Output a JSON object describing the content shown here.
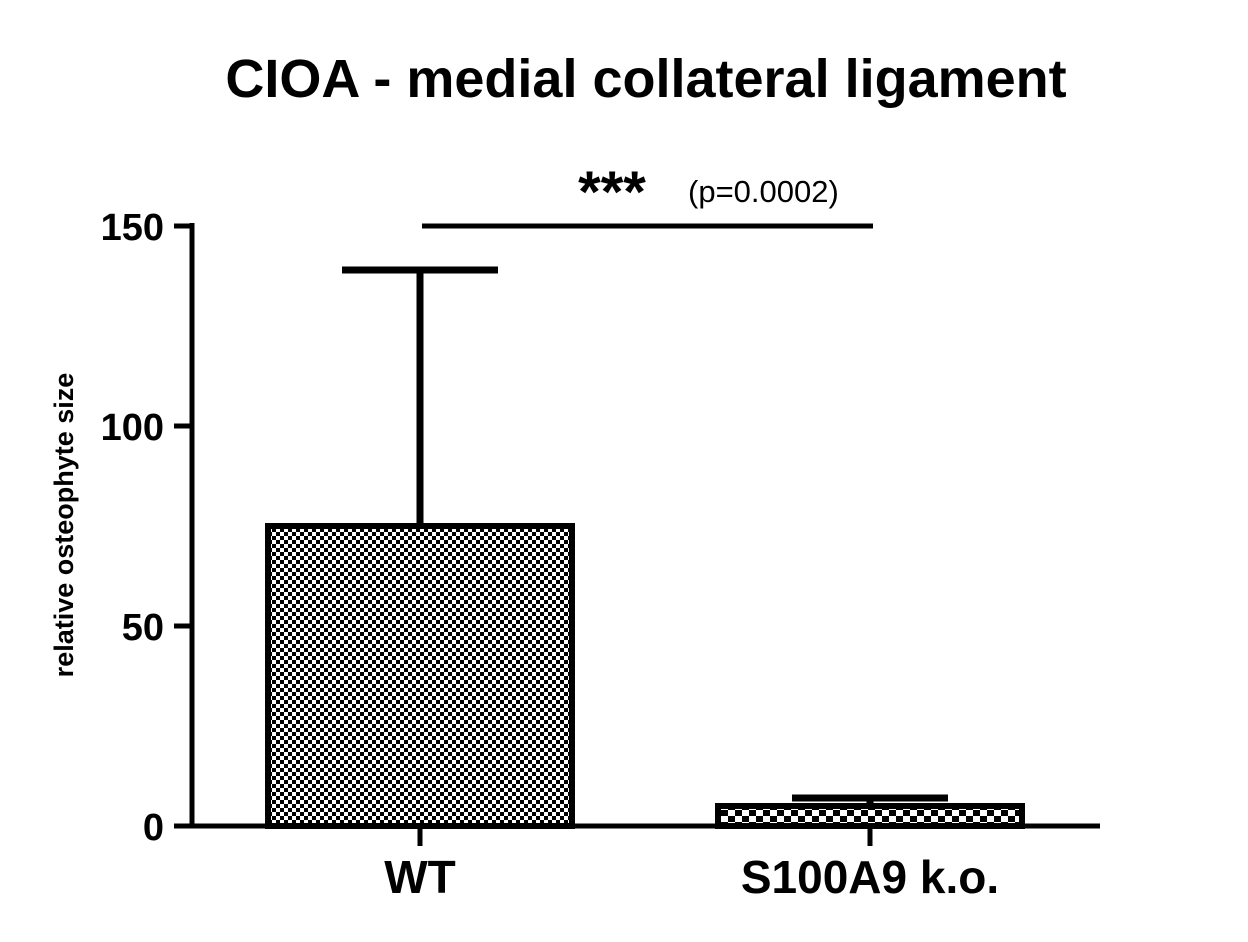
{
  "chart_data": {
    "type": "bar",
    "title": "CIOA - medial collateral ligament",
    "xlabel": "",
    "ylabel": "relative osteophyte size",
    "ylim": [
      0,
      150
    ],
    "yticks": [
      0,
      50,
      100,
      150
    ],
    "categories": [
      "WT",
      "S100A9 k.o."
    ],
    "values": [
      75,
      5
    ],
    "error_upper": [
      139,
      7
    ],
    "significance": {
      "stars": "***",
      "p_value": "(p=0.0002)",
      "level": 150
    },
    "bar_patterns": [
      "fine-checker",
      "coarse-checker"
    ],
    "grid": false,
    "colors": {
      "bar_edge": "#000000",
      "pattern_dark": "#000000",
      "pattern_light": "#ffffff"
    }
  }
}
